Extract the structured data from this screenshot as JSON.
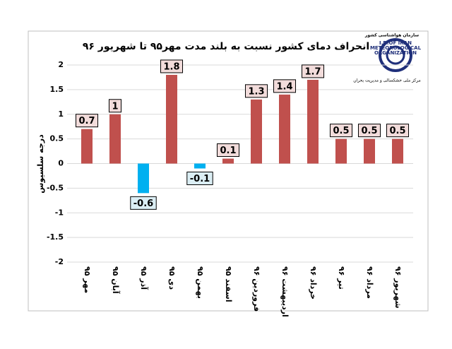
{
  "chart_data": {
    "type": "bar",
    "title": "انحراف دمای کشور نسبت به بلند مدت مهر۹۵ تا شهریور ۹۶",
    "y_label": "درجه سلسیوس",
    "logo": {
      "org_fa": "سازمان هواشناسی کشور",
      "line1": "I.R.OF IRAN",
      "line2": "METEOROLOGICAL",
      "line3": "ORGANIZATION",
      "center_fa": "مرکز ملی خشکسالی و مدیریت بحران"
    },
    "categories": [
      "مهر ۹۵",
      "آبان ۹۵",
      "آذر ۹۵",
      "دی ۹۵",
      "بهمن ۹۵",
      "اسفند ۹۵",
      "فروردین ۹۶",
      "اردیبهشت ۹۶",
      "خرداد ۹۶",
      "تیر ۹۶",
      "مرداد ۹۶",
      "شهریور ۹۶"
    ],
    "values": [
      0.7,
      1,
      -0.6,
      1.8,
      -0.1,
      0.1,
      1.3,
      1.4,
      1.7,
      0.5,
      0.5,
      0.5
    ],
    "colors": [
      "#c0504d",
      "#c0504d",
      "#00b0f0",
      "#c0504d",
      "#00b0f0",
      "#c0504d",
      "#c0504d",
      "#c0504d",
      "#c0504d",
      "#c0504d",
      "#c0504d",
      "#c0504d"
    ],
    "ylim": [
      -2,
      2
    ],
    "yticks": [
      2,
      1.5,
      1,
      0.5,
      0,
      -0.5,
      -1,
      -1.5,
      -2
    ],
    "grid": true
  }
}
